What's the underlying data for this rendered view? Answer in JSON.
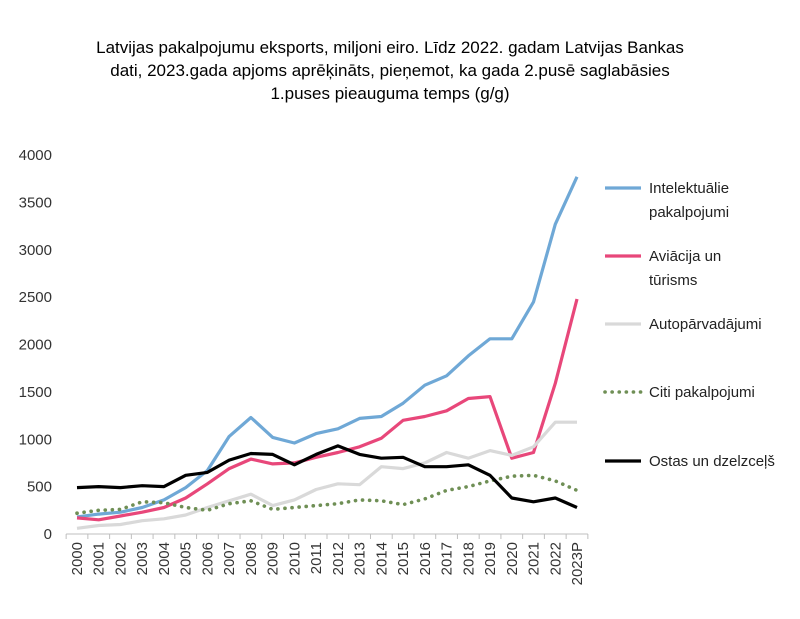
{
  "chart_data": {
    "type": "line",
    "title_lines": [
      "Latvijas pakalpojumu eksports, miljoni eiro. Līdz 2022. gadam Latvijas Bankas",
      "dati,  2023.gada apjoms aprēķināts, pieņemot, ka gada 2.pusē saglabāsies",
      "1.puses pieauguma temps (g/g)"
    ],
    "categories": [
      "2000",
      "2001",
      "2002",
      "2003",
      "2004",
      "2005",
      "2006",
      "2007",
      "2008",
      "2009",
      "2010",
      "2011",
      "2012",
      "2013",
      "2014",
      "2015",
      "2016",
      "2017",
      "2018",
      "2019",
      "2020",
      "2021",
      "2022",
      "2023P"
    ],
    "y_ticks": [
      "0",
      "500",
      "1000",
      "1500",
      "2000",
      "2500",
      "3000",
      "3500",
      "4000"
    ],
    "ylim": [
      0,
      4000
    ],
    "grid": false,
    "legend_position": "right",
    "series": [
      {
        "name_lines": [
          "Intelektuālie",
          "pakalpojumi"
        ],
        "color": "#6fa8d6",
        "style": "solid",
        "values": [
          180,
          210,
          230,
          280,
          360,
          490,
          670,
          1030,
          1230,
          1020,
          960,
          1060,
          1110,
          1220,
          1240,
          1380,
          1570,
          1670,
          1880,
          2060,
          2060,
          2450,
          3270,
          3770
        ]
      },
      {
        "name_lines": [
          "Aviācija un",
          "tūrisms"
        ],
        "color": "#e8477a",
        "style": "solid",
        "values": [
          170,
          150,
          190,
          230,
          280,
          380,
          530,
          690,
          790,
          740,
          750,
          810,
          860,
          920,
          1010,
          1200,
          1240,
          1300,
          1430,
          1450,
          800,
          860,
          1590,
          2480
        ]
      },
      {
        "name_lines": [
          "Autopārvadājumi"
        ],
        "color": "#d9d9d9",
        "style": "solid",
        "values": [
          60,
          90,
          100,
          140,
          160,
          200,
          280,
          350,
          420,
          300,
          360,
          470,
          530,
          520,
          710,
          690,
          750,
          860,
          800,
          880,
          830,
          920,
          1180,
          1180
        ]
      },
      {
        "name_lines": [
          "Citi pakalpojumi"
        ],
        "color": "#6f8f55",
        "style": "dotted",
        "values": [
          220,
          250,
          260,
          340,
          330,
          280,
          250,
          320,
          350,
          260,
          280,
          300,
          320,
          360,
          350,
          310,
          370,
          460,
          500,
          560,
          610,
          620,
          560,
          460
        ]
      },
      {
        "name_lines": [
          "Ostas un dzelzceļš"
        ],
        "color": "#000000",
        "style": "solid",
        "values": [
          490,
          500,
          490,
          510,
          500,
          620,
          650,
          780,
          850,
          840,
          730,
          840,
          930,
          840,
          800,
          810,
          710,
          710,
          730,
          620,
          380,
          340,
          380,
          280
        ]
      }
    ]
  }
}
